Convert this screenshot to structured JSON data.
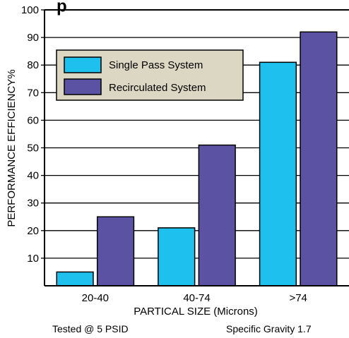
{
  "chart_data": {
    "type": "bar",
    "categories": [
      "20-40",
      "40-74",
      ">74"
    ],
    "series": [
      {
        "name": "Single Pass System",
        "color": "#1ec0ee",
        "values": [
          5,
          21,
          81
        ]
      },
      {
        "name": "Recirculated System",
        "color": "#5b52a3",
        "values": [
          25,
          51,
          92
        ]
      }
    ],
    "xlabel": "PARTICAL SIZE (Microns)",
    "ylabel": "PERFORMANCE EFFICIENCY%",
    "ylim": [
      0,
      100
    ],
    "yticks": [
      10,
      20,
      30,
      40,
      50,
      60,
      70,
      80,
      90,
      100
    ],
    "grid": true,
    "legend_position": "top-left",
    "legend_bg": "#dcd7c2",
    "title_fragment": "p",
    "notes": {
      "left": "Tested @ 5 PSID",
      "right": "Specific Gravity 1.7"
    }
  }
}
